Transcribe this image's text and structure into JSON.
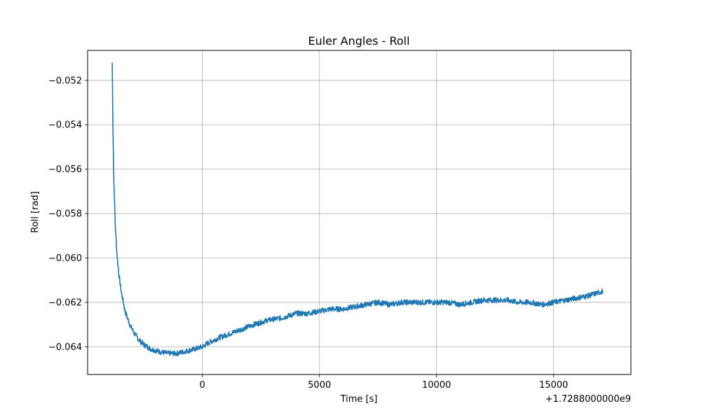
{
  "chart_data": {
    "type": "line",
    "title": "Euler Angles - Roll",
    "xlabel": "Time [s]",
    "ylabel": "Roll [rad]",
    "x_offset_label": "+1.7288000000e9",
    "xlim": [
      -4900,
      18300
    ],
    "ylim": [
      -0.06525,
      -0.05065
    ],
    "x_ticks": [
      0,
      5000,
      10000,
      15000
    ],
    "x_tick_labels": [
      "0",
      "5000",
      "10000",
      "15000"
    ],
    "y_ticks": [
      -0.052,
      -0.054,
      -0.056,
      -0.058,
      -0.06,
      -0.062,
      -0.064
    ],
    "y_tick_labels": [
      "−0.052",
      "−0.054",
      "−0.056",
      "−0.058",
      "−0.060",
      "−0.062",
      "−0.064"
    ],
    "grid": true,
    "series": [
      {
        "color": "#1f77b4",
        "noise": 0.00012,
        "x": [
          -3850,
          -3820,
          -3780,
          -3720,
          -3650,
          -3560,
          -3450,
          -3300,
          -3100,
          -2900,
          -2700,
          -2500,
          -2200,
          -1900,
          -1500,
          -1100,
          -700,
          -300,
          0,
          300,
          700,
          1200,
          1700,
          2200,
          2800,
          3400,
          4000,
          4500,
          5000,
          5500,
          6000,
          6500,
          7000,
          7500,
          8000,
          8500,
          9000,
          9500,
          10000,
          10500,
          11000,
          11500,
          12000,
          12500,
          13000,
          13500,
          14000,
          14500,
          15000,
          15500,
          16000,
          16500,
          17100
        ],
        "y": [
          -0.0512,
          -0.054,
          -0.0565,
          -0.0585,
          -0.0598,
          -0.0608,
          -0.0616,
          -0.0624,
          -0.063,
          -0.0634,
          -0.0637,
          -0.0639,
          -0.0641,
          -0.0642,
          -0.0643,
          -0.0643,
          -0.0642,
          -0.0641,
          -0.064,
          -0.0638,
          -0.0636,
          -0.0634,
          -0.0632,
          -0.063,
          -0.0628,
          -0.0627,
          -0.0625,
          -0.0625,
          -0.0624,
          -0.0623,
          -0.0623,
          -0.0622,
          -0.0621,
          -0.062,
          -0.0621,
          -0.062,
          -0.062,
          -0.062,
          -0.062,
          -0.062,
          -0.0621,
          -0.062,
          -0.0619,
          -0.0619,
          -0.0619,
          -0.062,
          -0.062,
          -0.0621,
          -0.062,
          -0.0619,
          -0.0618,
          -0.0617,
          -0.0615
        ]
      }
    ]
  }
}
